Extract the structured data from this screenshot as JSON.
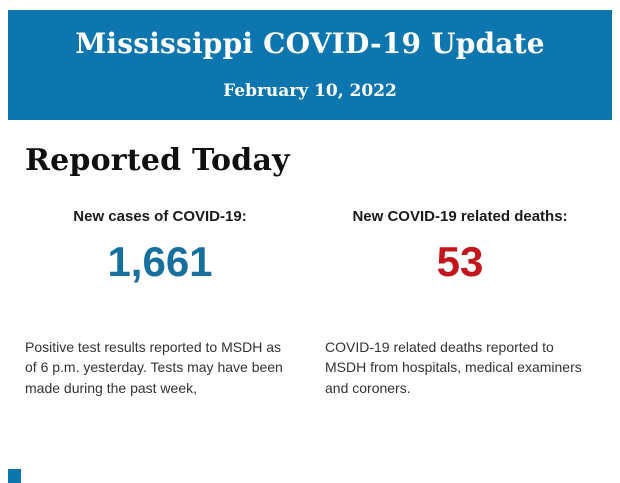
{
  "header": {
    "title": "Mississippi COVID-19 Update",
    "date": "February 10, 2022",
    "background_color": "#0d76ae",
    "text_color": "#ffffff"
  },
  "section": {
    "heading": "Reported Today"
  },
  "stats": [
    {
      "label": "New cases of COVID-19:",
      "value": "1,661",
      "value_color": "#176f9e",
      "description": "Positive test results reported to MSDH as of 6 p.m. yesterday. Tests may have been made during the past week,"
    },
    {
      "label": "New COVID-19 related deaths:",
      "value": "53",
      "value_color": "#c3161c",
      "description": "COVID-19 related deaths reported to MSDH from hospitals, medical examiners and coroners."
    }
  ],
  "footer": {
    "next_section_color": "#0d76ae"
  }
}
